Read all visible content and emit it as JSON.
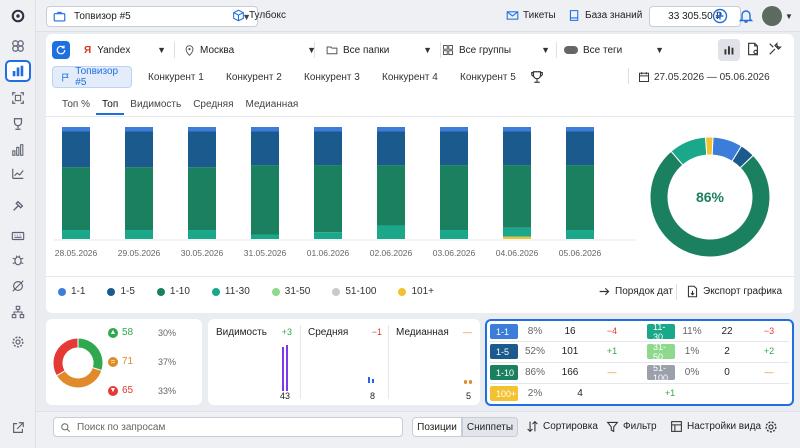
{
  "header": {
    "project": "Топвизор #5",
    "tools": "Тулбокс",
    "tickets": "Тикеты",
    "knowledge": "База знаний",
    "balance": "33 305.50 ₽"
  },
  "filters": {
    "engine": "Yandex",
    "region": "Москва",
    "folders": "Все папки",
    "groups": "Все группы",
    "tags": "Все теги",
    "date_range": "27.05.2026 — 05.06.2026"
  },
  "competitors": [
    "Топвизор #5",
    "Конкурент 1",
    "Конкурент 2",
    "Конкурент 3",
    "Конкурент 4",
    "Конкурент 5"
  ],
  "view_tabs": [
    "Топ %",
    "Топ",
    "Видимость",
    "Средняя",
    "Медианная"
  ],
  "chart_actions": {
    "dates_order": "Порядок дат",
    "export": "Экспорт графика"
  },
  "colors": {
    "c1_1": "#3b7dd8",
    "c1_5": "#1b5a8c",
    "c1_10": "#1a8060",
    "c11_30": "#1aa78a",
    "c31_50": "#8ed98c",
    "c51_100": "#c7cbd1",
    "c101": "#f2c230"
  },
  "chart_data": {
    "type": "bar",
    "stacked": true,
    "categories": [
      "28.05.2026",
      "29.05.2026",
      "30.05.2026",
      "31.05.2026",
      "01.06.2026",
      "02.06.2026",
      "03.06.2026",
      "04.06.2026",
      "05.06.2026"
    ],
    "series": [
      {
        "name": "1-1",
        "values": [
          4,
          4,
          4,
          4,
          4,
          4,
          4,
          4,
          4
        ]
      },
      {
        "name": "1-5",
        "values": [
          32,
          32,
          32,
          30,
          30,
          30,
          30,
          30,
          30
        ]
      },
      {
        "name": "1-10",
        "values": [
          56,
          56,
          56,
          62,
          60,
          54,
          58,
          56,
          58
        ]
      },
      {
        "name": "11-30",
        "values": [
          8,
          8,
          8,
          4,
          6,
          12,
          8,
          8,
          8
        ]
      },
      {
        "name": "31-50",
        "values": [
          0,
          0,
          0,
          0,
          0,
          0,
          0,
          0,
          0
        ]
      },
      {
        "name": "51-100",
        "values": [
          0,
          0,
          0,
          0,
          0,
          0,
          0,
          0,
          0
        ]
      },
      {
        "name": "101+",
        "values": [
          0,
          0,
          0,
          0,
          0,
          0,
          0,
          2,
          0
        ]
      }
    ],
    "ylim": [
      0,
      100
    ],
    "donut": {
      "center_label": "86%",
      "values": {
        "1-1": 8,
        "1-5": 4,
        "1-10": 76,
        "11-30": 10,
        "101+": 2
      }
    }
  },
  "dynamics": {
    "up": {
      "value": "58",
      "percent": "30%"
    },
    "same": {
      "value": "71",
      "percent": "37%"
    },
    "down": {
      "value": "65",
      "percent": "33%"
    }
  },
  "metrics": [
    {
      "label": "Видимость",
      "delta": "+3",
      "value": "43"
    },
    {
      "label": "Средняя",
      "delta": "−1",
      "value": "8"
    },
    {
      "label": "Медианная",
      "delta": "—",
      "value": "5"
    }
  ],
  "top_table": {
    "left": [
      {
        "range": "1-1",
        "pct": "8%",
        "count": "16",
        "delta": "−4"
      },
      {
        "range": "1-5",
        "pct": "52%",
        "count": "101",
        "delta": "+1"
      },
      {
        "range": "1-10",
        "pct": "86%",
        "count": "166",
        "delta": "—"
      },
      {
        "range": "100+",
        "pct": "2%",
        "count": "4",
        "delta": "+1"
      }
    ],
    "right": [
      {
        "range": "11-30",
        "pct": "11%",
        "count": "22",
        "delta": "−3"
      },
      {
        "range": "31-50",
        "pct": "1%",
        "count": "2",
        "delta": "+2"
      },
      {
        "range": "51-100",
        "pct": "0%",
        "count": "0",
        "delta": "—"
      }
    ]
  },
  "bottom": {
    "search_placeholder": "Поиск по запросам",
    "positions": "Позиции",
    "snippets": "Сниппеты",
    "sort": "Сортировка",
    "filter": "Фильтр",
    "view_settings": "Настройки вида"
  }
}
